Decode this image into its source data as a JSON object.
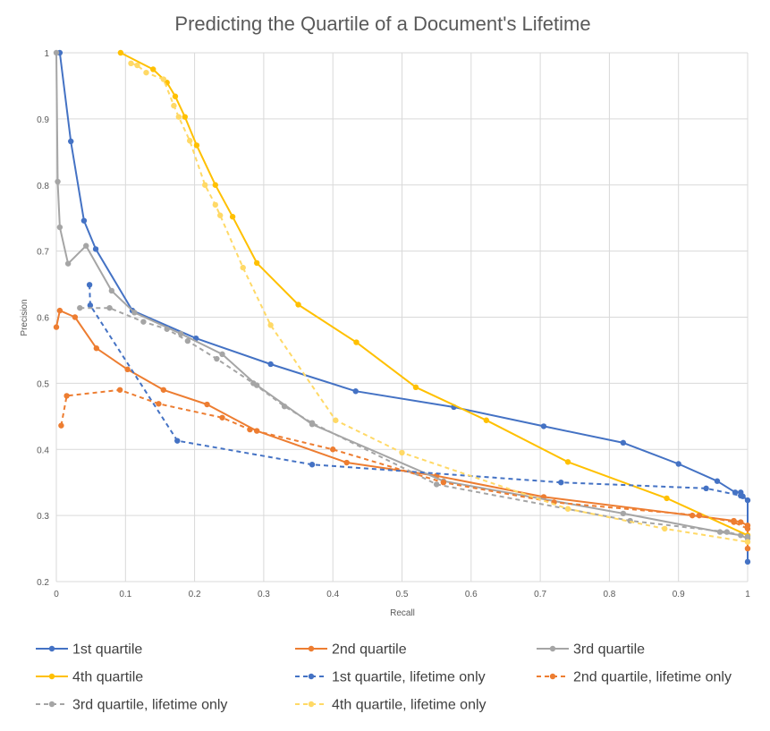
{
  "chart_data": {
    "type": "line",
    "title": "Predicting the Quartile of a Document's Lifetime",
    "xlabel": "Recall",
    "ylabel": "Precision",
    "xlim": [
      0,
      1
    ],
    "ylim": [
      0.2,
      1
    ],
    "xticks": [
      "0",
      "0.1",
      "0.2",
      "0.3",
      "0.4",
      "0.5",
      "0.6",
      "0.7",
      "0.8",
      "0.9",
      "1"
    ],
    "yticks": [
      "0.2",
      "0.3",
      "0.4",
      "0.5",
      "0.6",
      "0.7",
      "0.8",
      "0.9",
      "1"
    ],
    "grid": true,
    "legend_position": "bottom",
    "series": [
      {
        "name": "1st quartile",
        "color": "#4472C4",
        "dash": false,
        "points": [
          [
            0.005,
            1.0
          ],
          [
            0.021,
            0.866
          ],
          [
            0.04,
            0.746
          ],
          [
            0.057,
            0.703
          ],
          [
            0.11,
            0.61
          ],
          [
            0.202,
            0.568
          ],
          [
            0.31,
            0.529
          ],
          [
            0.433,
            0.488
          ],
          [
            0.575,
            0.464
          ],
          [
            0.705,
            0.435
          ],
          [
            0.82,
            0.41
          ],
          [
            0.9,
            0.378
          ],
          [
            0.956,
            0.352
          ],
          [
            0.982,
            0.335
          ],
          [
            0.99,
            0.335
          ],
          [
            0.993,
            0.329
          ],
          [
            1.0,
            0.323
          ],
          [
            1.0,
            0.23
          ]
        ]
      },
      {
        "name": "2nd quartile",
        "color": "#ED7D31",
        "dash": false,
        "points": [
          [
            0.0,
            0.585
          ],
          [
            0.005,
            0.61
          ],
          [
            0.027,
            0.6
          ],
          [
            0.058,
            0.553
          ],
          [
            0.103,
            0.521
          ],
          [
            0.155,
            0.49
          ],
          [
            0.218,
            0.468
          ],
          [
            0.29,
            0.428
          ],
          [
            0.42,
            0.38
          ],
          [
            0.55,
            0.36
          ],
          [
            0.705,
            0.328
          ],
          [
            0.92,
            0.3
          ],
          [
            0.98,
            0.292
          ],
          [
            0.99,
            0.29
          ],
          [
            1.0,
            0.285
          ],
          [
            1.0,
            0.25
          ]
        ]
      },
      {
        "name": "3rd quartile",
        "color": "#A5A5A5",
        "dash": false,
        "points": [
          [
            0.0,
            1.0
          ],
          [
            0.002,
            0.805
          ],
          [
            0.005,
            0.736
          ],
          [
            0.017,
            0.681
          ],
          [
            0.043,
            0.708
          ],
          [
            0.08,
            0.64
          ],
          [
            0.113,
            0.607
          ],
          [
            0.18,
            0.575
          ],
          [
            0.24,
            0.544
          ],
          [
            0.29,
            0.497
          ],
          [
            0.37,
            0.438
          ],
          [
            0.56,
            0.352
          ],
          [
            0.82,
            0.303
          ],
          [
            0.96,
            0.275
          ],
          [
            0.99,
            0.27
          ],
          [
            1.0,
            0.265
          ]
        ]
      },
      {
        "name": "4th quartile",
        "color": "#FFC000",
        "dash": false,
        "points": [
          [
            0.093,
            1.0
          ],
          [
            0.14,
            0.975
          ],
          [
            0.16,
            0.955
          ],
          [
            0.172,
            0.934
          ],
          [
            0.186,
            0.903
          ],
          [
            0.203,
            0.86
          ],
          [
            0.23,
            0.8
          ],
          [
            0.255,
            0.752
          ],
          [
            0.29,
            0.682
          ],
          [
            0.35,
            0.619
          ],
          [
            0.434,
            0.562
          ],
          [
            0.52,
            0.494
          ],
          [
            0.622,
            0.444
          ],
          [
            0.74,
            0.381
          ],
          [
            0.883,
            0.326
          ],
          [
            1.0,
            0.27
          ]
        ]
      },
      {
        "name": "1st quartile, lifetime only",
        "color": "#4472C4",
        "dash": true,
        "points": [
          [
            0.048,
            0.649
          ],
          [
            0.049,
            0.618
          ],
          [
            0.175,
            0.413
          ],
          [
            0.37,
            0.377
          ],
          [
            0.73,
            0.35
          ],
          [
            0.94,
            0.341
          ],
          [
            0.99,
            0.33
          ]
        ]
      },
      {
        "name": "2nd quartile, lifetime only",
        "color": "#ED7D31",
        "dash": true,
        "points": [
          [
            0.007,
            0.436
          ],
          [
            0.015,
            0.481
          ],
          [
            0.092,
            0.49
          ],
          [
            0.148,
            0.469
          ],
          [
            0.24,
            0.448
          ],
          [
            0.28,
            0.43
          ],
          [
            0.4,
            0.4
          ],
          [
            0.56,
            0.35
          ],
          [
            0.72,
            0.32
          ],
          [
            0.93,
            0.3
          ],
          [
            0.98,
            0.29
          ],
          [
            1.0,
            0.28
          ]
        ]
      },
      {
        "name": "3rd quartile, lifetime only",
        "color": "#A5A5A5",
        "dash": true,
        "points": [
          [
            0.034,
            0.614
          ],
          [
            0.077,
            0.614
          ],
          [
            0.126,
            0.593
          ],
          [
            0.16,
            0.582
          ],
          [
            0.19,
            0.564
          ],
          [
            0.232,
            0.537
          ],
          [
            0.285,
            0.5
          ],
          [
            0.33,
            0.465
          ],
          [
            0.37,
            0.44
          ],
          [
            0.55,
            0.347
          ],
          [
            0.83,
            0.292
          ],
          [
            0.97,
            0.275
          ],
          [
            1.0,
            0.268
          ]
        ]
      },
      {
        "name": "4th quartile, lifetime only",
        "color": "#FFD966",
        "dash": true,
        "points": [
          [
            0.108,
            0.984
          ],
          [
            0.117,
            0.981
          ],
          [
            0.13,
            0.97
          ],
          [
            0.155,
            0.96
          ],
          [
            0.17,
            0.92
          ],
          [
            0.177,
            0.903
          ],
          [
            0.193,
            0.867
          ],
          [
            0.215,
            0.8
          ],
          [
            0.23,
            0.77
          ],
          [
            0.237,
            0.754
          ],
          [
            0.27,
            0.675
          ],
          [
            0.31,
            0.588
          ],
          [
            0.404,
            0.444
          ],
          [
            0.5,
            0.395
          ],
          [
            0.74,
            0.31
          ],
          [
            0.88,
            0.28
          ],
          [
            1.0,
            0.26
          ]
        ]
      }
    ]
  }
}
